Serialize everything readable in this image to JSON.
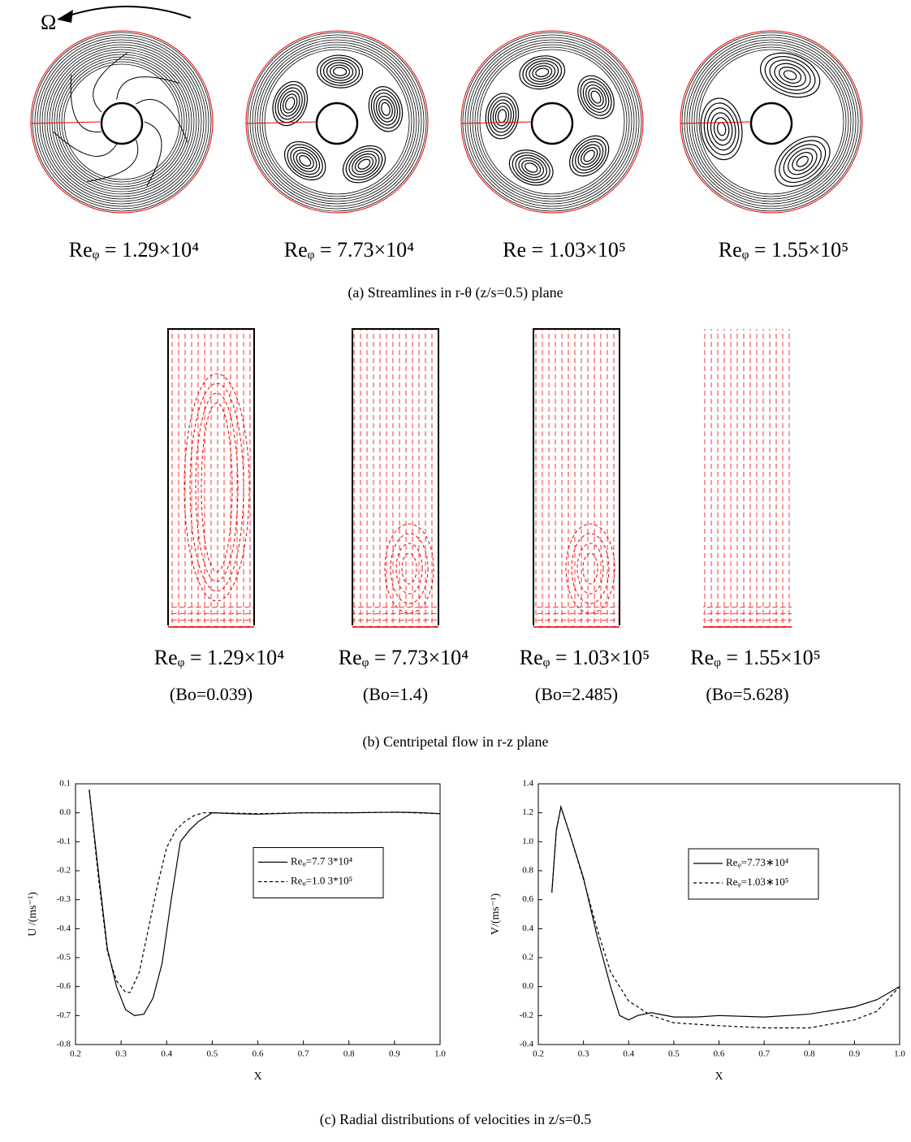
{
  "panel_a": {
    "omega": "Ω",
    "labels": [
      "Reᵩ = 1.29×10⁴",
      "Reᵩ = 7.73×10⁴",
      "Re   = 1.03×10⁵",
      "Reᵩ = 1.55×10⁵"
    ],
    "caption": "(a) Streamlines in r-θ (z/s=0.5) plane"
  },
  "panel_b": {
    "labels": [
      "Reᵩ = 1.29×10⁴",
      "Reᵩ = 7.73×10⁴",
      "Reᵩ = 1.03×10⁵",
      "Reᵩ = 1.55×10⁵"
    ],
    "bond": [
      "(Bo=0.039)",
      "(Bo=1.4)",
      "(Bo=2.485)",
      "(Bo=5.628)"
    ],
    "caption": "(b) Centripetal flow in r-z plane"
  },
  "caption_c": "(c) Radial distributions of velocities in z/s=0.5",
  "chart_data": [
    {
      "type": "line",
      "x_label": "X",
      "y_label": "U /(ms⁻¹)",
      "legend": "center right",
      "xlim": [
        0.2,
        1.0
      ],
      "xticks": [
        0.2,
        0.3,
        0.4,
        0.5,
        0.6,
        0.7,
        0.8,
        0.9,
        {
          "value": 1.0,
          "label": "1.0"
        }
      ],
      "ylim": [
        -0.8,
        0.1
      ],
      "yticks": [
        -0.8,
        -0.7,
        -0.6,
        -0.5,
        -0.4,
        -0.3,
        -0.2,
        -0.1,
        {
          "value": 0,
          "label": "0.0"
        },
        0.1
      ],
      "series": [
        {
          "name": "Reᵩ=7.7 3*10⁴",
          "color": "#000000",
          "dash": "solid",
          "x": [
            0.23,
            0.25,
            0.27,
            0.29,
            0.31,
            0.33,
            0.35,
            0.37,
            0.39,
            0.41,
            0.43,
            0.45,
            0.47,
            0.5,
            0.55,
            0.6,
            0.7,
            0.8,
            0.9,
            0.95,
            1.0
          ],
          "values": [
            0.08,
            -0.2,
            -0.47,
            -0.6,
            -0.68,
            -0.7,
            -0.695,
            -0.64,
            -0.52,
            -0.3,
            -0.1,
            -0.06,
            -0.03,
            0,
            -0.003,
            -0.005,
            0,
            0,
            0.002,
            0.001,
            -0.003
          ]
        },
        {
          "name": "Reᵩ=1.0 3*10⁵",
          "color": "#000000",
          "dash": "dashed",
          "x": [
            0.23,
            0.25,
            0.27,
            0.29,
            0.31,
            0.32,
            0.34,
            0.36,
            0.38,
            0.4,
            0.42,
            0.44,
            0.46,
            0.48,
            0.5,
            0.6,
            0.7,
            0.8,
            0.9,
            1.0
          ],
          "values": [
            0.08,
            -0.22,
            -0.48,
            -0.58,
            -0.62,
            -0.62,
            -0.55,
            -0.4,
            -0.25,
            -0.12,
            -0.06,
            -0.03,
            -0.01,
            0,
            0,
            -0.003,
            0,
            0,
            0.002,
            -0.003
          ]
        }
      ]
    },
    {
      "type": "line",
      "x_label": "X",
      "y_label": "V/(ms⁻¹)",
      "legend": "upper right",
      "xlim": [
        0.2,
        1.0
      ],
      "xticks": [
        0.2,
        0.3,
        0.4,
        0.5,
        0.6,
        0.7,
        0.8,
        0.9,
        {
          "value": 1.0,
          "label": "1.0"
        }
      ],
      "ylim": [
        -0.4,
        1.4
      ],
      "yticks": [
        -0.4,
        -0.2,
        {
          "value": 0,
          "label": "0.0"
        },
        0.2,
        0.4,
        0.6,
        0.8,
        {
          "value": 1.0,
          "label": "1.0"
        },
        1.2,
        1.4
      ],
      "series": [
        {
          "name": "Reᵩ=7.73∗10⁴",
          "color": "#000000",
          "dash": "solid",
          "x": [
            0.23,
            0.24,
            0.25,
            0.27,
            0.3,
            0.33,
            0.36,
            0.38,
            0.4,
            0.42,
            0.45,
            0.5,
            0.55,
            0.6,
            0.7,
            0.8,
            0.9,
            0.95,
            1.0
          ],
          "values": [
            0.65,
            1.08,
            1.24,
            1.05,
            0.75,
            0.35,
            0.0,
            -0.2,
            -0.23,
            -0.2,
            -0.18,
            -0.21,
            -0.21,
            -0.2,
            -0.21,
            -0.19,
            -0.14,
            -0.09,
            0.0
          ]
        },
        {
          "name": "Reᵩ=1.03∗10⁵",
          "color": "#000000",
          "dash": "dashed",
          "x": [
            0.23,
            0.24,
            0.25,
            0.27,
            0.3,
            0.33,
            0.36,
            0.4,
            0.45,
            0.5,
            0.6,
            0.7,
            0.8,
            0.9,
            0.95,
            1.0
          ],
          "values": [
            0.65,
            1.08,
            1.24,
            1.05,
            0.74,
            0.4,
            0.1,
            -0.1,
            -0.2,
            -0.25,
            -0.27,
            -0.285,
            -0.285,
            -0.23,
            -0.17,
            0.0
          ]
        }
      ]
    }
  ]
}
